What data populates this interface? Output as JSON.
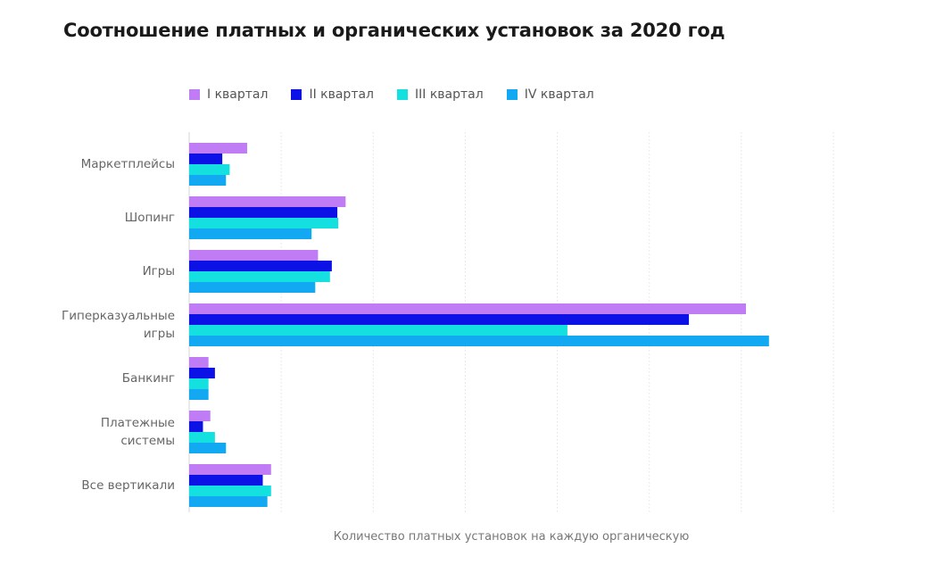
{
  "title": "Соотношение платных и органических установок за 2020 год",
  "chart_data": {
    "type": "bar",
    "orientation": "horizontal",
    "title": "Соотношение платных и органических установок за 2020 год",
    "xlabel": "Количество платных установок на каждую органическую",
    "ylabel": "",
    "categories": [
      "Маркетплейсы",
      "Шопинг",
      "Игры",
      "Гиперказуальные игры",
      "Банкинг",
      "Платежные системы",
      "Все вертикали"
    ],
    "category_lines": [
      [
        "Маркетплейсы"
      ],
      [
        "Шопинг"
      ],
      [
        "Игры"
      ],
      [
        "Гиперказуальные",
        "игры"
      ],
      [
        "Банкинг"
      ],
      [
        "Платежные",
        "системы"
      ],
      [
        "Все вертикали"
      ]
    ],
    "series": [
      {
        "name": "I квартал",
        "color": "#bf7cf5",
        "values": [
          0.63,
          1.7,
          1.4,
          6.05,
          0.21,
          0.23,
          0.89
        ]
      },
      {
        "name": "II квартал",
        "color": "#0c12e6",
        "values": [
          0.36,
          1.61,
          1.55,
          5.43,
          0.28,
          0.15,
          0.8
        ]
      },
      {
        "name": "III квартал",
        "color": "#14e0e0",
        "values": [
          0.44,
          1.62,
          1.53,
          4.11,
          0.21,
          0.28,
          0.89
        ]
      },
      {
        "name": "IV квартал",
        "color": "#12a8f2",
        "values": [
          0.4,
          1.33,
          1.37,
          6.3,
          0.21,
          0.4,
          0.85
        ]
      }
    ],
    "xlim": [
      0,
      7
    ],
    "grid": true,
    "legend_position": "top-left"
  }
}
